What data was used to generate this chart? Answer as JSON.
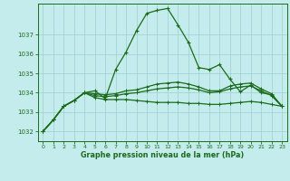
{
  "title": "Graphe pression niveau de la mer (hPa)",
  "background_color": "#c5eced",
  "grid_color": "#9ecfcf",
  "line_color": "#1a6b1a",
  "xlim": [
    -0.5,
    23.5
  ],
  "ylim": [
    1031.5,
    1038.6
  ],
  "yticks": [
    1032,
    1033,
    1034,
    1035,
    1036,
    1037
  ],
  "xticks": [
    0,
    1,
    2,
    3,
    4,
    5,
    6,
    7,
    8,
    9,
    10,
    11,
    12,
    13,
    14,
    15,
    16,
    17,
    18,
    19,
    20,
    21,
    22,
    23
  ],
  "series1_x": [
    0,
    1,
    2,
    3,
    4,
    5,
    6,
    7,
    8,
    9,
    10,
    11,
    12,
    13,
    14,
    15,
    16,
    17,
    18,
    19,
    20,
    21,
    22,
    23
  ],
  "series1_y": [
    1032.0,
    1032.6,
    1033.3,
    1033.6,
    1034.0,
    1034.1,
    1033.7,
    1035.2,
    1036.1,
    1037.2,
    1038.1,
    1038.25,
    1038.35,
    1037.5,
    1036.6,
    1035.3,
    1035.2,
    1035.45,
    1034.7,
    1034.05,
    1034.4,
    1034.0,
    1033.9,
    1033.3
  ],
  "series2_x": [
    0,
    1,
    2,
    3,
    4,
    5,
    6,
    7,
    8,
    9,
    10,
    11,
    12,
    13,
    14,
    15,
    16,
    17,
    18,
    19,
    20,
    21,
    22,
    23
  ],
  "series2_y": [
    1032.0,
    1032.6,
    1033.3,
    1033.6,
    1034.0,
    1033.75,
    1033.65,
    1033.65,
    1033.65,
    1033.6,
    1033.55,
    1033.5,
    1033.5,
    1033.5,
    1033.45,
    1033.45,
    1033.4,
    1033.4,
    1033.45,
    1033.5,
    1033.55,
    1033.5,
    1033.4,
    1033.3
  ],
  "series3_x": [
    0,
    1,
    2,
    3,
    4,
    5,
    6,
    7,
    8,
    9,
    10,
    11,
    12,
    13,
    14,
    15,
    16,
    17,
    18,
    19,
    20,
    21,
    22,
    23
  ],
  "series3_y": [
    1032.0,
    1032.6,
    1033.3,
    1033.6,
    1034.0,
    1033.85,
    1033.8,
    1033.85,
    1033.95,
    1034.0,
    1034.1,
    1034.2,
    1034.25,
    1034.3,
    1034.25,
    1034.15,
    1034.0,
    1034.05,
    1034.2,
    1034.3,
    1034.35,
    1034.1,
    1033.85,
    1033.3
  ],
  "series4_x": [
    0,
    1,
    2,
    3,
    4,
    5,
    6,
    7,
    8,
    9,
    10,
    11,
    12,
    13,
    14,
    15,
    16,
    17,
    18,
    19,
    20,
    21,
    22,
    23
  ],
  "series4_y": [
    1032.0,
    1032.6,
    1033.3,
    1033.6,
    1034.0,
    1033.95,
    1033.9,
    1033.95,
    1034.1,
    1034.15,
    1034.3,
    1034.45,
    1034.5,
    1034.55,
    1034.45,
    1034.3,
    1034.1,
    1034.1,
    1034.35,
    1034.45,
    1034.5,
    1034.2,
    1033.95,
    1033.3
  ]
}
